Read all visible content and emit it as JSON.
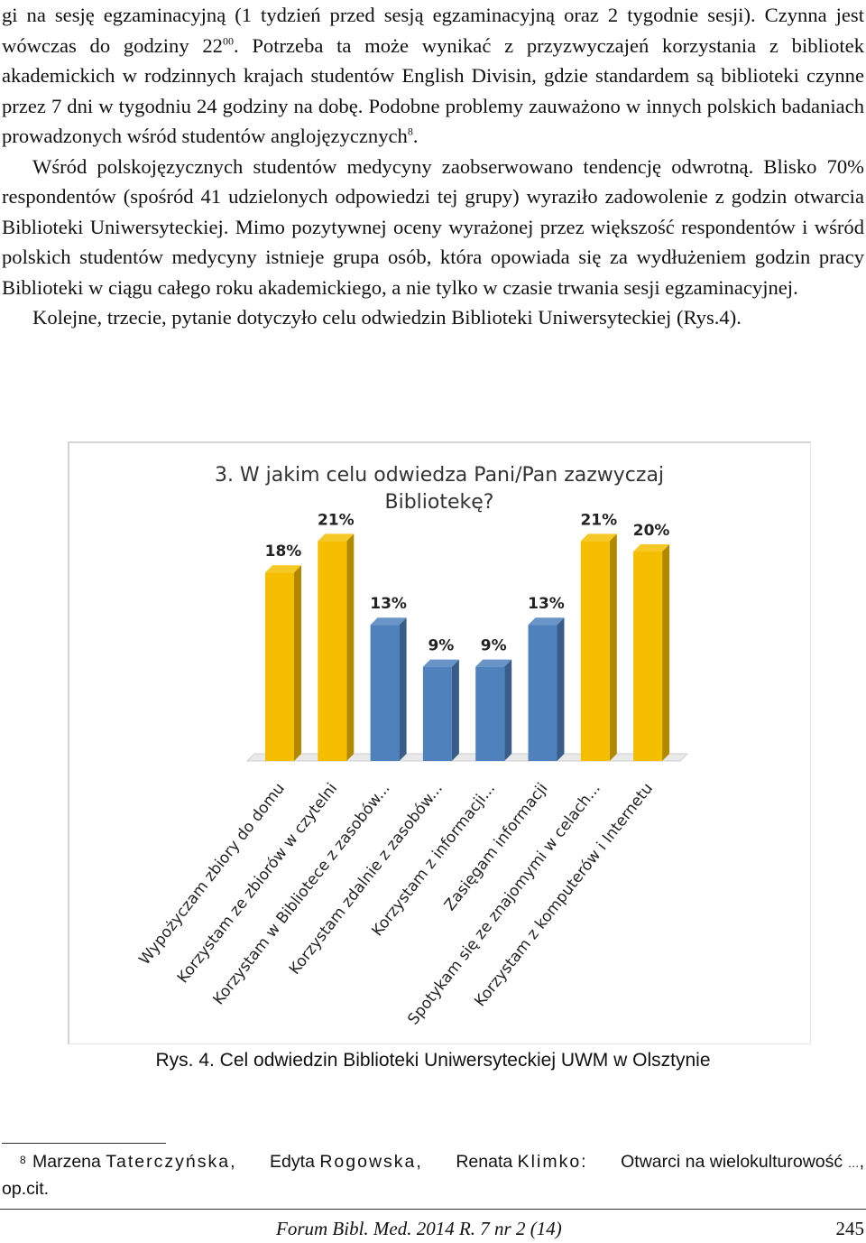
{
  "body_text": {
    "p1_lines": [
      "gi na sesję egzaminacyjną (1 tydzień przed sesją egzaminacyjną oraz 2 tygodnie sesji).",
      "Czynna jest wówczas do godziny 22",
      "00",
      ". Potrzeba ta może wynikać z przyzwyczajeń korzystania z bibliotek akademickich w rodzinnych krajach studentów English Divisin, gdzie standardem są biblioteki czynne przez 7 dni w tygodniu 24 godziny na dobę. Podobne problemy zauważono w innych polskich badaniach prowadzonych wśród studentów anglojęzycznych",
      "8",
      "."
    ],
    "p2": "Wśród polskojęzycznych studentów medycyny zaobserwowano tendencję odwrotną. Blisko 70% respondentów (spośród 41 udzielonych odpowiedzi tej grupy) wyraziło zadowolenie z godzin otwarcia Biblioteki Uniwersyteckiej. Mimo pozytywnej oceny wyrażonej przez większość respondentów i wśród polskich studentów medycyny istnieje grupa osób, która opowiada się za wydłużeniem godzin pracy Biblioteki w ciągu całego roku akademickiego, a nie tylko w czasie trwania sesji egzaminacyjnej.",
    "p3": "Kolejne, trzecie, pytanie dotyczyło celu odwiedzin Biblioteki Uniwersyteckiej (Rys.4)."
  },
  "chart_data": {
    "type": "bar",
    "title_lines": [
      "3. W jakim celu odwiedza Pani/Pan zazwyczaj",
      "Bibliotekę?"
    ],
    "categories": [
      "Wypożyczam zbiory do domu",
      "Korzystam ze zbiorów w czytelni",
      "Korzystam w Bibliotece z zasobów...",
      "Korzystam zdalnie z zasobów...",
      "Korzystam z informacji...",
      "Zasięgam informacji",
      "Spotykam się ze znajomymi w celach...",
      "Korzystam z komputerów i Internetu"
    ],
    "values": [
      18,
      21,
      13,
      9,
      9,
      13,
      21,
      20
    ],
    "value_labels": [
      "18%",
      "21%",
      "13%",
      "9%",
      "9%",
      "13%",
      "21%",
      "20%"
    ],
    "bar_colors": [
      "#F5BE00",
      "#F5BE00",
      "#4F81BD",
      "#4F81BD",
      "#4F81BD",
      "#4F81BD",
      "#F5BE00",
      "#F5BE00"
    ],
    "ylim": [
      0,
      25
    ],
    "grid": false,
    "legend": "none"
  },
  "caption": "Rys. 4. Cel odwiedzin Biblioteki Uniwersyteckiej UWM w Olsztynie",
  "footnote": {
    "mark": "8",
    "authors": [
      {
        "first": "Marzena",
        "last": "Taterczyńska"
      },
      {
        "first": "Edyta",
        "last": "Rogowska"
      },
      {
        "first": "Renata",
        "last": "Klimko"
      }
    ],
    "title": "Otwarci na wielokulturowość",
    "ellipsis": "…",
    "ref": "op.cit."
  },
  "footer": {
    "journal": "Forum Bibl. Med. 2014 R. 7 nr 2 (14)",
    "page": "245"
  }
}
